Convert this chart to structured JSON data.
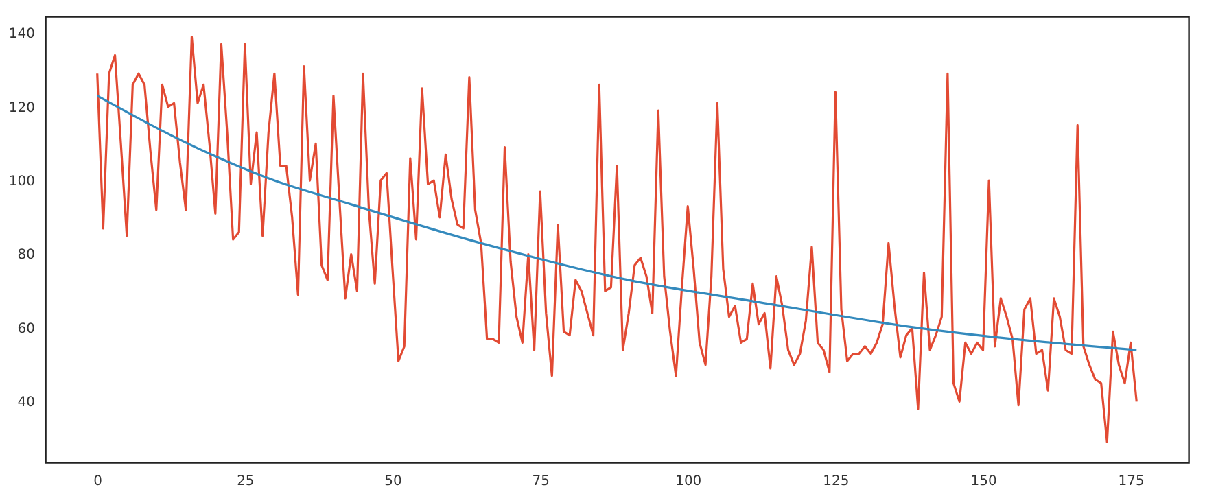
{
  "chart_data": {
    "type": "line",
    "x": [
      0,
      1,
      2,
      3,
      4,
      5,
      6,
      7,
      8,
      9,
      10,
      11,
      12,
      13,
      14,
      15,
      16,
      17,
      18,
      19,
      20,
      21,
      22,
      23,
      24,
      25,
      26,
      27,
      28,
      29,
      30,
      31,
      32,
      33,
      34,
      35,
      36,
      37,
      38,
      39,
      40,
      41,
      42,
      43,
      44,
      45,
      46,
      47,
      48,
      49,
      50,
      51,
      52,
      53,
      54,
      55,
      56,
      57,
      58,
      59,
      60,
      61,
      62,
      63,
      64,
      65,
      66,
      67,
      68,
      69,
      70,
      71,
      72,
      73,
      74,
      75,
      76,
      77,
      78,
      79,
      80,
      81,
      82,
      83,
      84,
      85,
      86,
      87,
      88,
      89,
      90,
      91,
      92,
      93,
      94,
      95,
      96,
      97,
      98,
      99,
      100,
      101,
      102,
      103,
      104,
      105,
      106,
      107,
      108,
      109,
      110,
      111,
      112,
      113,
      114,
      115,
      116,
      117,
      118,
      119,
      120,
      121,
      122,
      123,
      124,
      125,
      126,
      127,
      128,
      129,
      130,
      131,
      132,
      133,
      134,
      135,
      136,
      137,
      138,
      139,
      140,
      141,
      142,
      143,
      144,
      145,
      146,
      147,
      148,
      149,
      150,
      151,
      152,
      153,
      154,
      155,
      156,
      157,
      158,
      159,
      160,
      161,
      162,
      163,
      164,
      165,
      166,
      167,
      168,
      169,
      170,
      171,
      172,
      173,
      174,
      175,
      176
    ],
    "series": [
      {
        "color": "#e24a33",
        "values": [
          129,
          87,
          129,
          134,
          110,
          85,
          126,
          129,
          126,
          108,
          92,
          126,
          120,
          121,
          105,
          92,
          139,
          121,
          126,
          110,
          91,
          137,
          113,
          84,
          86,
          137,
          99,
          113,
          85,
          113,
          129,
          104,
          104,
          90,
          69,
          131,
          100,
          110,
          77,
          73,
          123,
          95,
          68,
          80,
          70,
          129,
          92,
          72,
          100,
          102,
          76,
          51,
          55,
          106,
          84,
          125,
          99,
          100,
          90,
          107,
          95,
          88,
          87,
          128,
          92,
          83,
          57,
          57,
          56,
          109,
          78,
          63,
          56,
          80,
          54,
          97,
          64,
          47,
          88,
          59,
          58,
          73,
          70,
          64,
          58,
          126,
          70,
          71,
          104,
          54,
          64,
          77,
          79,
          74,
          64,
          119,
          74,
          59,
          47,
          71,
          93,
          76,
          56,
          50,
          74,
          121,
          76,
          63,
          66,
          56,
          57,
          72,
          61,
          64,
          49,
          74,
          66,
          54,
          50,
          53,
          62,
          82,
          56,
          54,
          48,
          124,
          65,
          51,
          53,
          53,
          55,
          53,
          56,
          61,
          83,
          66,
          52,
          58,
          60,
          38,
          75,
          54,
          58,
          63,
          129,
          45,
          40,
          56,
          53,
          56,
          54,
          100,
          55,
          68,
          63,
          57,
          39,
          65,
          68,
          53,
          54,
          43,
          68,
          63,
          54,
          53,
          115,
          55,
          50,
          46,
          45,
          29,
          59,
          50,
          45,
          56,
          40
        ]
      },
      {
        "color": "#348abd",
        "x": [
          0,
          18,
          30,
          42,
          65,
          90,
          112,
          139,
          176
        ],
        "values": [
          123,
          108,
          100,
          94,
          83,
          73,
          67,
          60,
          54
        ]
      }
    ],
    "xlim": [
      -8.8,
      184.8
    ],
    "xticks": [
      0,
      25,
      50,
      75,
      100,
      125,
      150,
      175
    ],
    "ylim": [
      23.5,
      144.5
    ],
    "yticks": [
      40,
      60,
      80,
      100,
      120,
      140
    ],
    "grid": false
  }
}
